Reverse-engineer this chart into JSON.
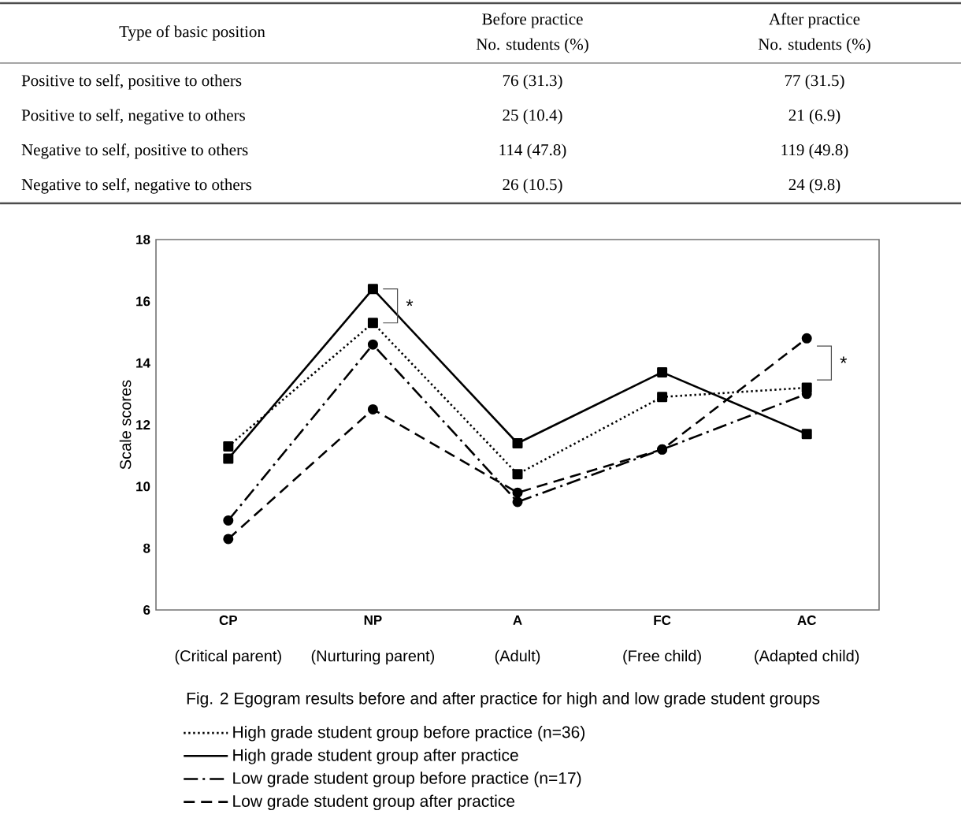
{
  "chart_data": [
    {
      "type": "other",
      "annotations": [
        "Type of basic position",
        "Before practice",
        "No. students (%)",
        "After practice",
        "No. students (%)",
        "Positive to self, positive to others",
        "76 (31.3)",
        "77 (31.5)",
        "Positive to self, negative to others",
        "25 (10.4)",
        "21 (6.9)",
        "Negative to self, positive to others",
        "114 (47.8)",
        "119 (49.8)",
        "Negative to self, negative to others",
        "26 (10.5)",
        "24 (9.8)"
      ]
    },
    {
      "type": "line",
      "ylabel": "Scale scores",
      "categories": [
        "CP",
        "NP",
        "A",
        "FC",
        "AC"
      ],
      "ylim": [
        6,
        18
      ],
      "yticks": [
        6,
        8,
        10,
        12,
        14,
        16,
        18
      ],
      "legend": "bottom",
      "series": [
        {
          "name": "High grade student group before practice (n=36)",
          "color": "#000000",
          "line_style": "dotted",
          "marker": "square",
          "values": [
            11.3,
            15.3,
            10.4,
            12.9,
            13.2
          ]
        },
        {
          "name": "High grade student group after practice",
          "color": "#000000",
          "line_style": "solid",
          "marker": "square",
          "values": [
            10.9,
            16.4,
            11.4,
            13.7,
            11.7
          ]
        },
        {
          "name": "Low grade student group before practice (n=17)",
          "color": "#000000",
          "line_style": "dashdot",
          "marker": "circle",
          "values": [
            8.9,
            14.6,
            9.5,
            11.2,
            13.0
          ]
        },
        {
          "name": "Low grade student group after practice",
          "color": "#000000",
          "line_style": "dashed",
          "marker": "circle",
          "values": [
            8.3,
            12.5,
            9.8,
            11.2,
            14.8
          ]
        }
      ],
      "annotations": [
        "(Critical parent)",
        "(Nurturing parent)",
        "(Adult)",
        "(Free child)",
        "(Adapted child)",
        "Fig. 2 Egogram results before and after practice for high and low grade student groups",
        "*",
        "*"
      ]
    }
  ]
}
